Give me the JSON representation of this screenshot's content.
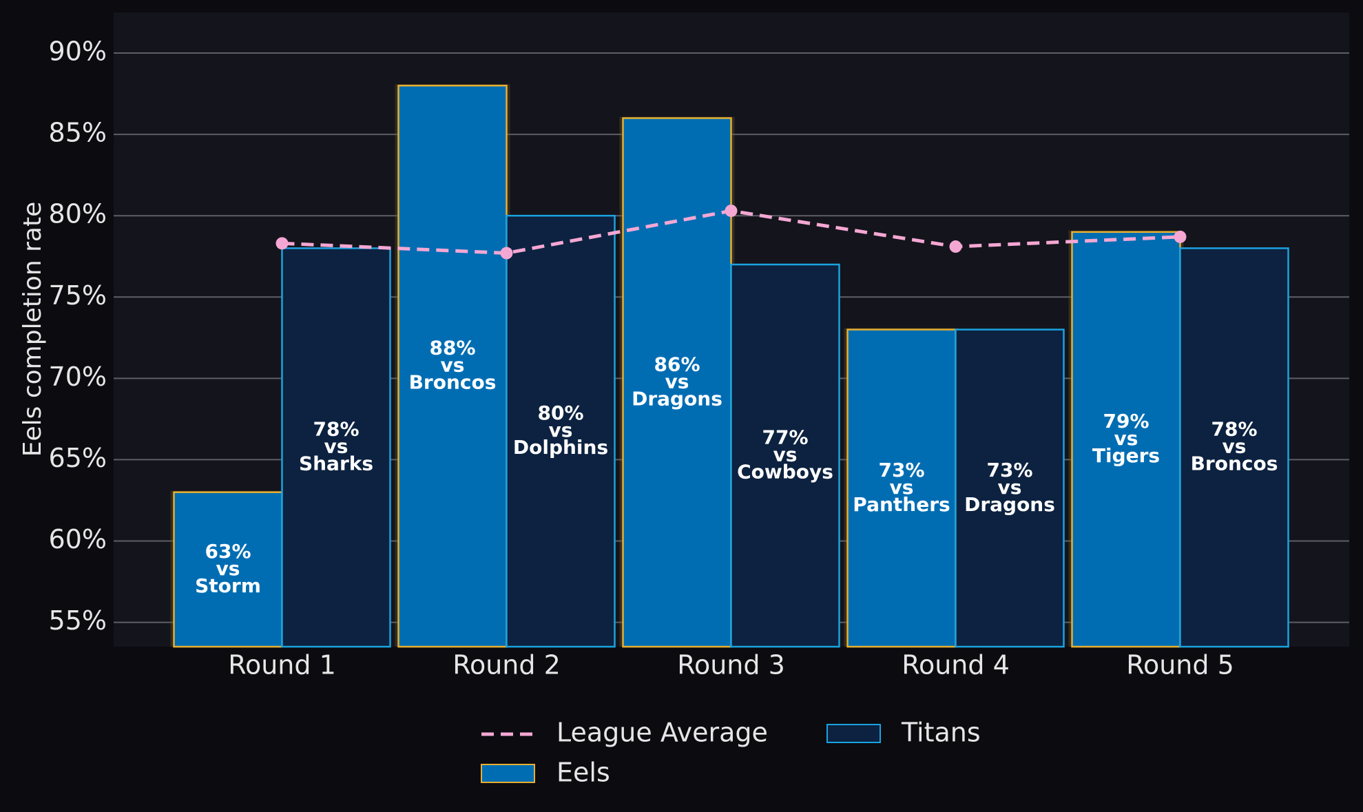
{
  "chart_data": {
    "type": "bar",
    "ylabel": "Eels completion rate",
    "xlabel": "",
    "categories": [
      "Round 1",
      "Round 2",
      "Round 3",
      "Round 4",
      "Round 5"
    ],
    "y_ticks": [
      "55%",
      "60%",
      "65%",
      "70%",
      "75%",
      "80%",
      "85%",
      "90%"
    ],
    "y_tick_values": [
      55,
      60,
      65,
      70,
      75,
      80,
      85,
      90
    ],
    "ylim": [
      53.5,
      92.5
    ],
    "grid": true,
    "legend_placement": "bottom-center",
    "series": [
      {
        "name": "Eels",
        "kind": "bar",
        "values": [
          63,
          88,
          86,
          73,
          79
        ],
        "opponents": [
          "Storm",
          "Broncos",
          "Dragons",
          "Panthers",
          "Tigers"
        ],
        "labels": [
          [
            "63%",
            "vs",
            "Storm"
          ],
          [
            "88%",
            "vs",
            "Broncos"
          ],
          [
            "86%",
            "vs",
            "Dragons"
          ],
          [
            "73%",
            "vs",
            "Panthers"
          ],
          [
            "79%",
            "vs",
            "Tigers"
          ]
        ],
        "fill": "#006db3",
        "edge": "#e8b030"
      },
      {
        "name": "Titans",
        "kind": "bar",
        "values": [
          78,
          80,
          77,
          73,
          78
        ],
        "opponents": [
          "Sharks",
          "Dolphins",
          "Cowboys",
          "Dragons",
          "Broncos"
        ],
        "labels": [
          [
            "78%",
            "vs",
            "Sharks"
          ],
          [
            "80%",
            "vs",
            "Dolphins"
          ],
          [
            "77%",
            "vs",
            "Cowboys"
          ],
          [
            "73%",
            "vs",
            "Dragons"
          ],
          [
            "78%",
            "vs",
            "Broncos"
          ]
        ],
        "fill": "#0c2240",
        "edge": "#1aa3e0"
      },
      {
        "name": "League Average",
        "kind": "line",
        "values": [
          78.3,
          77.7,
          80.3,
          78.1,
          78.7
        ],
        "color": "#f5a7d3",
        "style": "dashed"
      }
    ],
    "legend": [
      "League Average",
      "Titans",
      "Eels"
    ]
  }
}
